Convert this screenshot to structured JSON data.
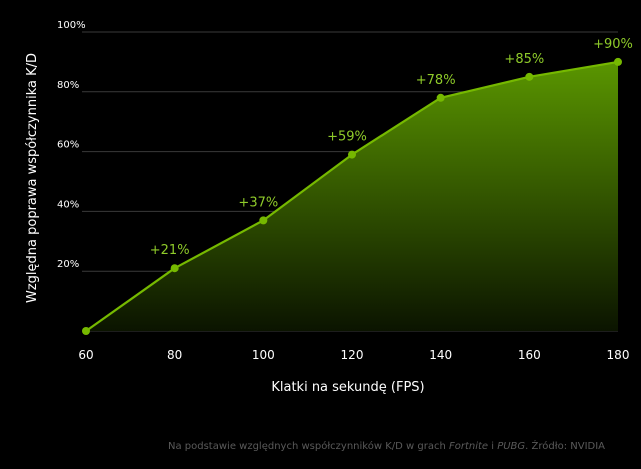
{
  "chart_data": {
    "type": "area",
    "title": "",
    "xlabel": "Klatki na sekundę (FPS)",
    "ylabel": "Względna poprawa współczynnika K/D",
    "x": [
      60,
      80,
      100,
      120,
      140,
      160,
      180
    ],
    "series": [
      {
        "values": [
          0,
          21,
          37,
          59,
          78,
          85,
          90
        ]
      }
    ],
    "data_labels": [
      "",
      "+21%",
      "+37%",
      "+59%",
      "+78%",
      "+85%",
      "+90%"
    ],
    "x_ticks": [
      "60",
      "80",
      "100",
      "120",
      "140",
      "160",
      "180"
    ],
    "y_ticks": [
      {
        "value": 20,
        "label": "20%"
      },
      {
        "value": 40,
        "label": "40%"
      },
      {
        "value": 60,
        "label": "60%"
      },
      {
        "value": 80,
        "label": "80%"
      },
      {
        "value": 100,
        "label": "100%"
      }
    ],
    "xlim": [
      60,
      180
    ],
    "ylim": [
      0,
      100
    ],
    "grid": "horizontal",
    "colors": {
      "line": "#76b900",
      "fill_top": "#5a9600",
      "fill_bottom": "#0b1400",
      "grid": "#3a3a3a",
      "label": "#8fcb2a"
    }
  },
  "footnote": {
    "part1": "Na podstawie względnych współczynników K/D w grach ",
    "game1": "Fortnite",
    "part2": " i ",
    "game2": "PUBG",
    "part3": ". Źródło: NVIDIA"
  }
}
